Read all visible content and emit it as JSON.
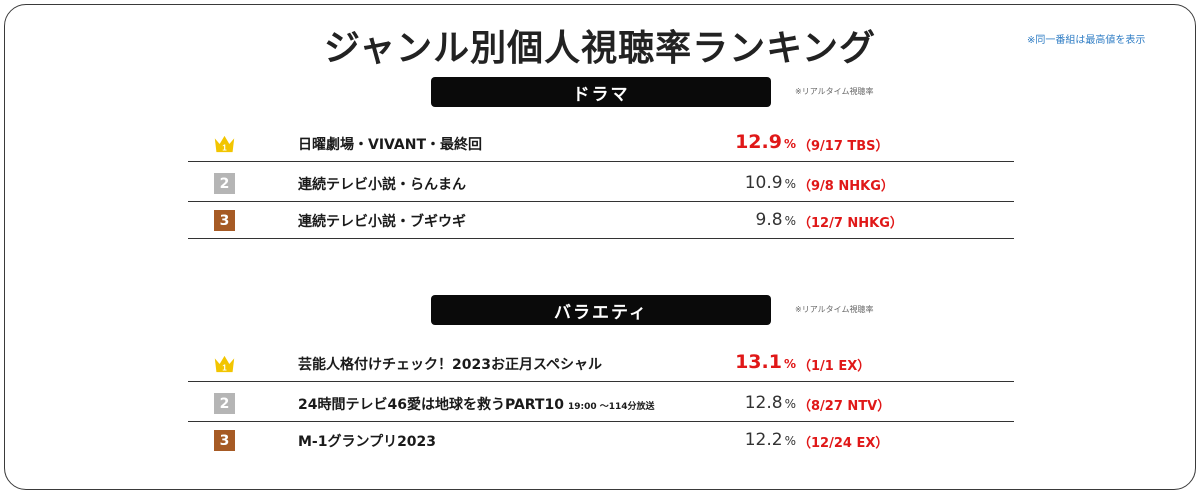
{
  "title": "ジャンル別個人視聴率ランキング",
  "note": "※同一番組は最高値を表示",
  "sections": [
    {
      "header": "ドラマ",
      "note": "※リアルタイム視聴率",
      "rows": [
        {
          "rank": "1",
          "program": "日曜劇場・VIVANT・最終回",
          "extra": "",
          "rating": "12.9",
          "unit": "%",
          "detail": "（9/17 TBS）"
        },
        {
          "rank": "2",
          "program": "連続テレビ小説・らんまん",
          "extra": "",
          "rating": "10.9",
          "unit": "%",
          "detail": "（9/8 NHKG）"
        },
        {
          "rank": "3",
          "program": "連続テレビ小説・ブギウギ",
          "extra": "",
          "rating": "9.8",
          "unit": "%",
          "detail": "（12/7 NHKG）"
        }
      ]
    },
    {
      "header": "バラエティ",
      "note": "※リアルタイム視聴率",
      "rows": [
        {
          "rank": "1",
          "program": "芸能人格付けチェック！2023お正月スペシャル",
          "extra": "",
          "rating": "13.1",
          "unit": "%",
          "detail": "（1/1 EX）"
        },
        {
          "rank": "2",
          "program": "24時間テレビ46愛は地球を救うPART10",
          "extra": "19:00 ～114分放送",
          "rating": "12.8",
          "unit": "%",
          "detail": "（8/27 NTV）"
        },
        {
          "rank": "3",
          "program": "M-1グランプリ2023",
          "extra": "",
          "rating": "12.2",
          "unit": "%",
          "detail": "（12/24 EX）"
        }
      ]
    }
  ],
  "colors": {
    "accent_red": "#e01818",
    "gold": "#f2c500",
    "silver": "#b5b5b5",
    "bronze": "#a65a24",
    "header_bg": "#0a0a0a",
    "note_blue": "#2e7cc4"
  }
}
